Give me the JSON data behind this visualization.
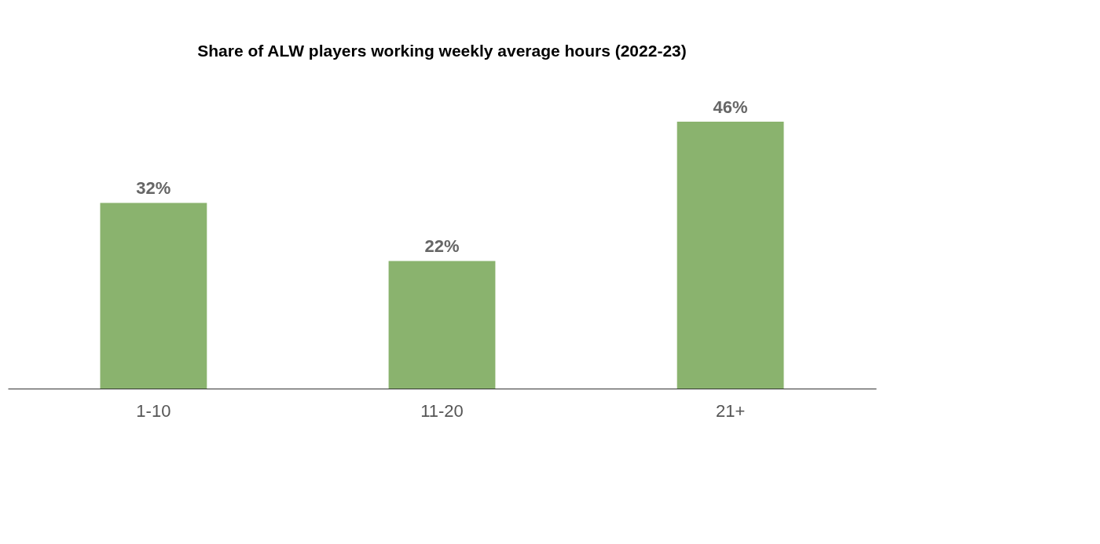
{
  "chart_data": {
    "type": "bar",
    "title": "Share of ALW players working weekly average hours (2022-23)",
    "categories": [
      "1-10",
      "11-20",
      "21+"
    ],
    "series": [
      {
        "color": "#8ab36e",
        "values": [
          32,
          22,
          46
        ],
        "value_labels": [
          "32%",
          "22%",
          "46%"
        ]
      }
    ],
    "grid": false
  }
}
